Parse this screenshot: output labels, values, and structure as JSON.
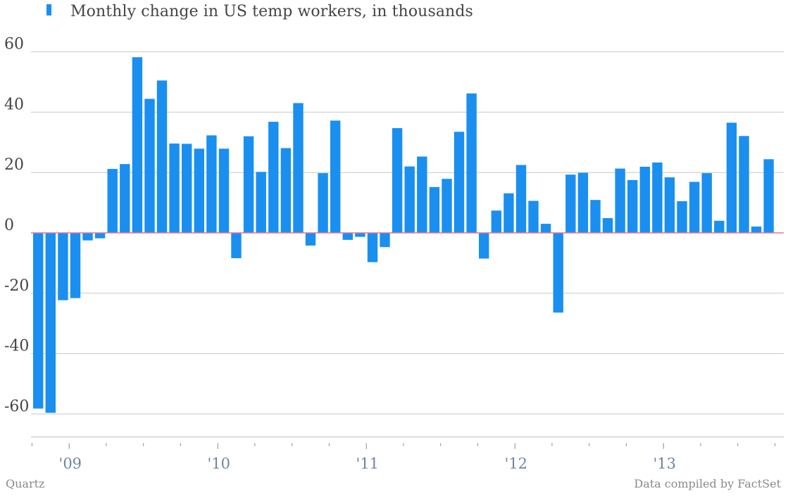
{
  "legend": {
    "label": "Monthly change in US temp workers, in thousands"
  },
  "source": {
    "left": "Quartz",
    "right": "Data compiled by FactSet"
  },
  "colors": {
    "bar": "#1a8ff0",
    "zero_line": "#e8739a",
    "grid": "#c8c8c8",
    "axis": "#bbbbbb"
  },
  "chart_data": {
    "type": "bar",
    "series": [
      {
        "name": "Monthly change in US temp workers, in thousands",
        "values": [
          -58.2,
          -59.6,
          -22.3,
          -21.6,
          -2.5,
          -1.8,
          21.2,
          22.8,
          58.2,
          44.4,
          50.5,
          29.6,
          29.5,
          27.9,
          32.3,
          27.9,
          -8.4,
          32.0,
          20.2,
          36.8,
          28.1,
          43.0,
          -4.2,
          19.8,
          37.2,
          -2.3,
          -1.3,
          -9.7,
          -4.7,
          34.7,
          22.0,
          25.3,
          15.2,
          17.9,
          33.5,
          46.2,
          -8.5,
          7.4,
          13.1,
          22.5,
          10.6,
          3.0,
          -26.4,
          19.3,
          19.9,
          10.9,
          4.9,
          21.3,
          17.5,
          21.9,
          23.3,
          18.4,
          10.5,
          16.9,
          19.8,
          4.0,
          36.5,
          32.1,
          2.1,
          24.4
        ]
      }
    ],
    "ylim": [
      -70,
      60
    ],
    "yticks": [
      "60",
      "40",
      "20",
      "0",
      "-20",
      "-40",
      "-60"
    ],
    "xtick_labels": [
      "'09",
      "'10",
      "'11",
      "'12",
      "'13"
    ],
    "grid": true,
    "legend_position": "top-left"
  }
}
